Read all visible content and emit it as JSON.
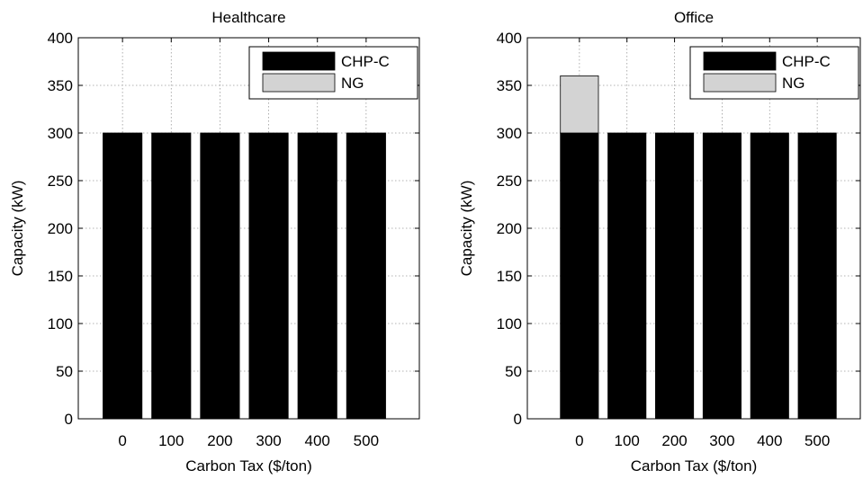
{
  "chart_data": [
    {
      "type": "bar",
      "stacked": true,
      "title": "Healthcare",
      "xlabel": "Carbon Tax ($/ton)",
      "ylabel": "Capacity (kW)",
      "categories": [
        "0",
        "100",
        "200",
        "300",
        "400",
        "500"
      ],
      "series": [
        {
          "name": "CHP-C",
          "values": [
            300,
            300,
            300,
            300,
            300,
            300
          ],
          "color": "#000000"
        },
        {
          "name": "NG",
          "values": [
            0,
            0,
            0,
            0,
            0,
            0
          ],
          "color": "#d3d3d3"
        }
      ],
      "ylim": [
        0,
        400
      ],
      "yticks": [
        0,
        50,
        100,
        150,
        200,
        250,
        300,
        350,
        400
      ],
      "grid": true,
      "legend": "top-right"
    },
    {
      "type": "bar",
      "stacked": true,
      "title": "Office",
      "xlabel": "Carbon Tax ($/ton)",
      "ylabel": "Capacity (kW)",
      "categories": [
        "0",
        "100",
        "200",
        "300",
        "400",
        "500"
      ],
      "series": [
        {
          "name": "CHP-C",
          "values": [
            300,
            300,
            300,
            300,
            300,
            300
          ],
          "color": "#000000"
        },
        {
          "name": "NG",
          "values": [
            60,
            0,
            0,
            0,
            0,
            0
          ],
          "color": "#d3d3d3"
        }
      ],
      "ylim": [
        0,
        400
      ],
      "yticks": [
        0,
        50,
        100,
        150,
        200,
        250,
        300,
        350,
        400
      ],
      "grid": true,
      "legend": "top-right"
    }
  ]
}
